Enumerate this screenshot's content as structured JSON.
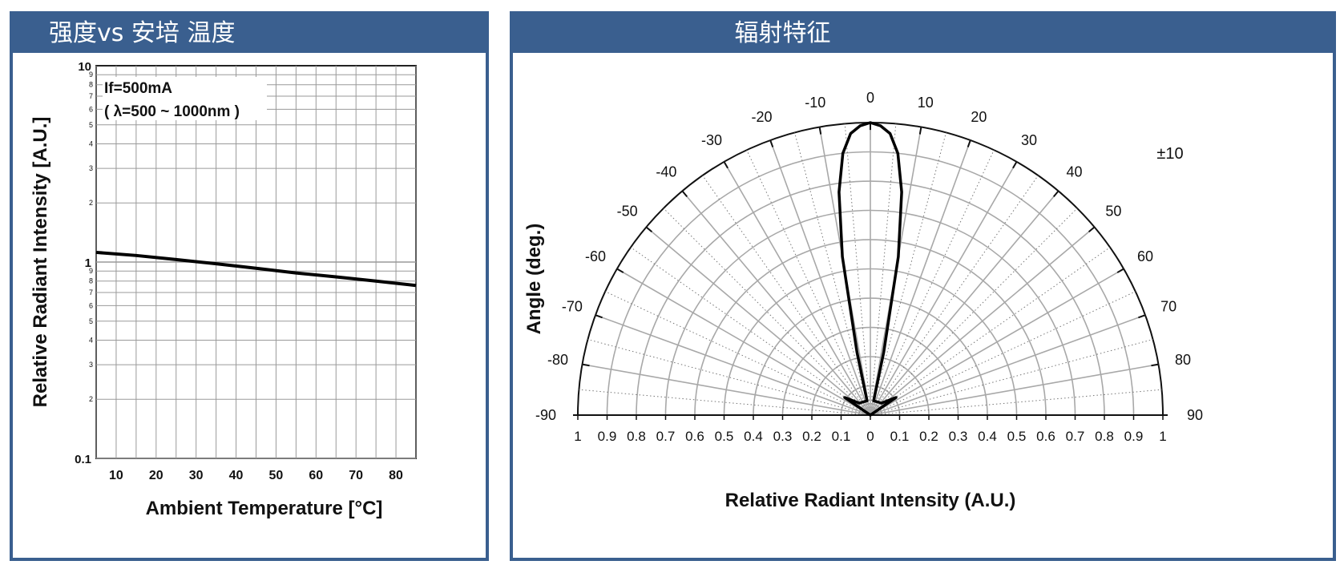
{
  "left_panel": {
    "header": "强度vs 安培 温度"
  },
  "right_panel": {
    "header": "辐射特征"
  },
  "chart_data": [
    {
      "type": "line",
      "title": "",
      "xlabel": "Ambient Temperature [°C]",
      "ylabel": "Relative Radiant Intensity [A.U.]",
      "xlim": [
        5,
        85
      ],
      "ylim": [
        0.1,
        10
      ],
      "yscale": "log",
      "grid": true,
      "x_ticks": [
        10,
        20,
        30,
        40,
        50,
        60,
        70,
        80
      ],
      "y_major_ticks": [
        {
          "v": 0.1,
          "label": "0.1"
        },
        {
          "v": 1,
          "label": "1"
        },
        {
          "v": 10,
          "label": "10"
        }
      ],
      "y_minor_ticks": [
        2,
        3,
        4,
        5,
        6,
        7,
        8,
        9
      ],
      "annotation": [
        "If=500mA",
        "( λ=500 ~ 1000nm )"
      ],
      "series": [
        {
          "x": [
            5,
            15,
            25,
            35,
            45,
            55,
            65,
            75,
            85
          ],
          "y": [
            1.12,
            1.08,
            1.03,
            0.98,
            0.93,
            0.88,
            0.84,
            0.8,
            0.76
          ]
        }
      ]
    },
    {
      "type": "polar",
      "title": "",
      "ylabel": "Angle (deg.)",
      "xlabel": "Relative Radiant Intensity (A.U.)",
      "angle_ticks": [
        -90,
        -80,
        -70,
        -60,
        -50,
        -40,
        -30,
        -20,
        -10,
        0,
        10,
        20,
        30,
        40,
        50,
        60,
        70,
        80,
        90
      ],
      "radial_ticks": [
        "1",
        "0.9",
        "0.8",
        "0.7",
        "0.6",
        "0.5",
        "0.4",
        "0.3",
        "0.2",
        "0.1",
        "0",
        "0.1",
        "0.2",
        "0.3",
        "0.4",
        "0.5",
        "0.6",
        "0.7",
        "0.8",
        "0.9",
        "1"
      ],
      "annotation": "±10",
      "series": [
        {
          "angle": [
            -13,
            -12,
            -10,
            -8,
            -6,
            -4,
            -2,
            0,
            2,
            4,
            6,
            8,
            10,
            12,
            13
          ],
          "r": [
            0.05,
            0.22,
            0.55,
            0.77,
            0.9,
            0.965,
            0.99,
            1.0,
            0.99,
            0.965,
            0.9,
            0.77,
            0.55,
            0.22,
            0.05
          ]
        }
      ]
    }
  ]
}
